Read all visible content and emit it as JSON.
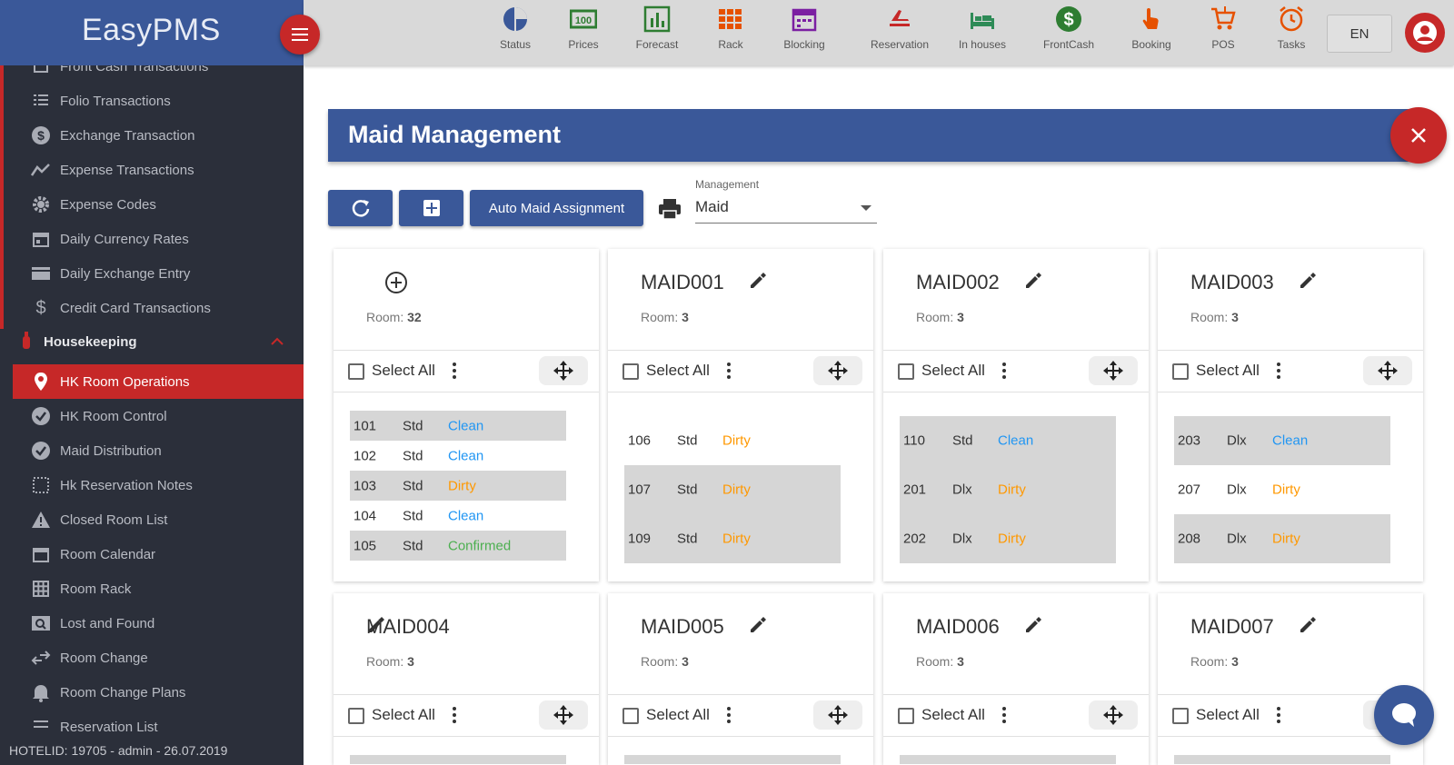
{
  "app": {
    "brand": "EasyPMS",
    "footer": "HOTELID: 19705 - admin - 26.07.2019"
  },
  "colors": {
    "primary": "#3a5899",
    "accent": "#c62828",
    "sidebar_bg": "#2b2f3a",
    "clean": "#2196f3",
    "dirty": "#ff9800",
    "confirmed": "#4caf50"
  },
  "sidebar": {
    "items_before": [
      {
        "label": "Front Cash Transactions",
        "icon": "cash-register-icon"
      },
      {
        "label": "Folio Transactions",
        "icon": "list-icon"
      },
      {
        "label": "Exchange Transaction",
        "icon": "dollar-circle-icon"
      },
      {
        "label": "Expense Transactions",
        "icon": "trend-icon"
      },
      {
        "label": "Expense Codes",
        "icon": "gear-icon"
      },
      {
        "label": "Daily Currency Rates",
        "icon": "calendar-icon"
      },
      {
        "label": "Daily Exchange Entry",
        "icon": "card-icon"
      },
      {
        "label": "Credit Card Transactions",
        "icon": "dollar-icon"
      }
    ],
    "section": {
      "label": "Housekeeping",
      "icon": "extinguisher-icon"
    },
    "items_after": [
      {
        "label": "HK Room Operations",
        "icon": "pin-icon"
      },
      {
        "label": "HK Room Control",
        "icon": "check-circle-icon"
      },
      {
        "label": "Maid Distribution",
        "icon": "check-circle-icon"
      },
      {
        "label": "Hk Reservation Notes",
        "icon": "dotted-grid-icon"
      },
      {
        "label": "Closed Room List",
        "icon": "warning-icon"
      },
      {
        "label": "Room Calendar",
        "icon": "calendar-icon"
      },
      {
        "label": "Room Rack",
        "icon": "grid-icon"
      },
      {
        "label": "Lost and Found",
        "icon": "search-box-icon"
      },
      {
        "label": "Room Change",
        "icon": "swap-icon"
      },
      {
        "label": "Room Change Plans",
        "icon": "bell-icon"
      },
      {
        "label": "Reservation List",
        "icon": "list-icon"
      }
    ]
  },
  "topbar": {
    "items": [
      {
        "label": "Status",
        "icon": "pie-icon"
      },
      {
        "label": "Prices",
        "icon": "prices-icon"
      },
      {
        "label": "Forecast",
        "icon": "bar-chart-icon"
      },
      {
        "label": "Rack",
        "icon": "rack-grid-icon"
      },
      {
        "label": "Blocking",
        "icon": "calendar-block-icon"
      },
      {
        "label": "Reservation",
        "icon": "plane-icon"
      },
      {
        "label": "In houses",
        "icon": "bed-icon"
      },
      {
        "label": "FrontCash",
        "icon": "dollar-coin-icon"
      },
      {
        "label": "Booking",
        "icon": "hand-pointer-icon"
      },
      {
        "label": "POS",
        "icon": "cart-icon"
      },
      {
        "label": "Tasks",
        "icon": "alarm-icon"
      }
    ],
    "language": "EN"
  },
  "panel": {
    "title": "Maid Management",
    "auto_assign": "Auto Maid Assignment",
    "management_label": "Management",
    "management_value": "Maid"
  },
  "labels": {
    "room": "Room:",
    "select_all": "Select All"
  },
  "cards": [
    {
      "name": "",
      "rooms_count": "32",
      "rows": [
        {
          "no": "101",
          "type": "Std",
          "status": "Clean"
        },
        {
          "no": "102",
          "type": "Std",
          "status": "Clean"
        },
        {
          "no": "103",
          "type": "Std",
          "status": "Dirty"
        },
        {
          "no": "104",
          "type": "Std",
          "status": "Clean"
        },
        {
          "no": "105",
          "type": "Std",
          "status": "Confirmed"
        }
      ]
    },
    {
      "name": "MAID001",
      "rooms_count": "3",
      "rows": [
        {
          "no": "106",
          "type": "Std",
          "status": "Dirty"
        },
        {
          "no": "107",
          "type": "Std",
          "status": "Dirty"
        },
        {
          "no": "109",
          "type": "Std",
          "status": "Dirty"
        }
      ]
    },
    {
      "name": "MAID002",
      "rooms_count": "3",
      "rows": [
        {
          "no": "110",
          "type": "Std",
          "status": "Clean"
        },
        {
          "no": "201",
          "type": "Dlx",
          "status": "Dirty"
        },
        {
          "no": "202",
          "type": "Dlx",
          "status": "Dirty"
        }
      ]
    },
    {
      "name": "MAID003",
      "rooms_count": "3",
      "rows": [
        {
          "no": "203",
          "type": "Dlx",
          "status": "Clean"
        },
        {
          "no": "207",
          "type": "Dlx",
          "status": "Dirty"
        },
        {
          "no": "208",
          "type": "Dlx",
          "status": "Dirty"
        }
      ]
    },
    {
      "name": "MAID004",
      "rooms_count": "3",
      "rows": []
    },
    {
      "name": "MAID005",
      "rooms_count": "3",
      "rows": []
    },
    {
      "name": "MAID006",
      "rooms_count": "3",
      "rows": []
    },
    {
      "name": "MAID007",
      "rooms_count": "3",
      "rows": []
    }
  ]
}
